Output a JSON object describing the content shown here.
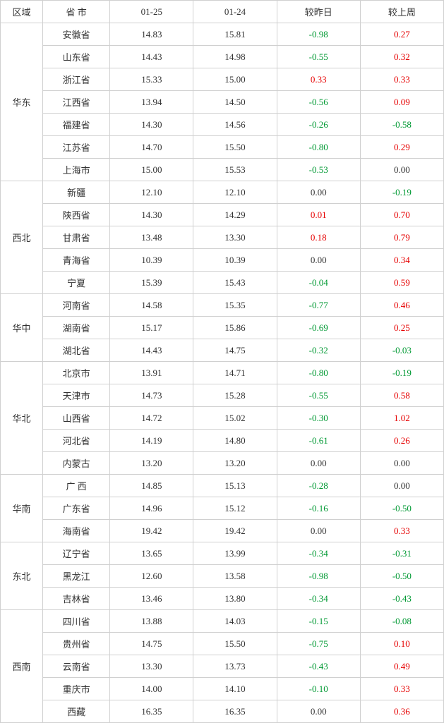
{
  "colors": {
    "neutral": "#333333",
    "positive": "#e60000",
    "negative": "#009933"
  },
  "headers": {
    "region": "区域",
    "province": "省 市",
    "d1": "01-25",
    "d2": "01-24",
    "vs_yest": "较昨日",
    "vs_week": "较上周"
  },
  "groups": [
    {
      "region": "华东",
      "rows": [
        {
          "prov": "安徽省",
          "v1": "14.83",
          "v2": "15.81",
          "dy": -0.98,
          "dw": 0.27
        },
        {
          "prov": "山东省",
          "v1": "14.43",
          "v2": "14.98",
          "dy": -0.55,
          "dw": 0.32
        },
        {
          "prov": "浙江省",
          "v1": "15.33",
          "v2": "15.00",
          "dy": 0.33,
          "dw": 0.33
        },
        {
          "prov": "江西省",
          "v1": "13.94",
          "v2": "14.50",
          "dy": -0.56,
          "dw": 0.09
        },
        {
          "prov": "福建省",
          "v1": "14.30",
          "v2": "14.56",
          "dy": -0.26,
          "dw": -0.58
        },
        {
          "prov": "江苏省",
          "v1": "14.70",
          "v2": "15.50",
          "dy": -0.8,
          "dw": 0.29
        },
        {
          "prov": "上海市",
          "v1": "15.00",
          "v2": "15.53",
          "dy": -0.53,
          "dw": 0.0
        }
      ]
    },
    {
      "region": "西北",
      "rows": [
        {
          "prov": "新疆",
          "v1": "12.10",
          "v2": "12.10",
          "dy": 0.0,
          "dw": -0.19
        },
        {
          "prov": "陕西省",
          "v1": "14.30",
          "v2": "14.29",
          "dy": 0.01,
          "dw": 0.7
        },
        {
          "prov": "甘肃省",
          "v1": "13.48",
          "v2": "13.30",
          "dy": 0.18,
          "dw": 0.79
        },
        {
          "prov": "青海省",
          "v1": "10.39",
          "v2": "10.39",
          "dy": 0.0,
          "dw": 0.34
        },
        {
          "prov": "宁夏",
          "v1": "15.39",
          "v2": "15.43",
          "dy": -0.04,
          "dw": 0.59
        }
      ]
    },
    {
      "region": "华中",
      "rows": [
        {
          "prov": "河南省",
          "v1": "14.58",
          "v2": "15.35",
          "dy": -0.77,
          "dw": 0.46
        },
        {
          "prov": "湖南省",
          "v1": "15.17",
          "v2": "15.86",
          "dy": -0.69,
          "dw": 0.25
        },
        {
          "prov": "湖北省",
          "v1": "14.43",
          "v2": "14.75",
          "dy": -0.32,
          "dw": -0.03
        }
      ]
    },
    {
      "region": "华北",
      "rows": [
        {
          "prov": "北京市",
          "v1": "13.91",
          "v2": "14.71",
          "dy": -0.8,
          "dw": -0.19
        },
        {
          "prov": "天津市",
          "v1": "14.73",
          "v2": "15.28",
          "dy": -0.55,
          "dw": 0.58
        },
        {
          "prov": "山西省",
          "v1": "14.72",
          "v2": "15.02",
          "dy": -0.3,
          "dw": 1.02
        },
        {
          "prov": "河北省",
          "v1": "14.19",
          "v2": "14.80",
          "dy": -0.61,
          "dw": 0.26
        },
        {
          "prov": "内蒙古",
          "v1": "13.20",
          "v2": "13.20",
          "dy": 0.0,
          "dw": 0.0
        }
      ]
    },
    {
      "region": "华南",
      "rows": [
        {
          "prov": "广 西",
          "v1": "14.85",
          "v2": "15.13",
          "dy": -0.28,
          "dw": 0.0
        },
        {
          "prov": "广东省",
          "v1": "14.96",
          "v2": "15.12",
          "dy": -0.16,
          "dw": -0.5
        },
        {
          "prov": "海南省",
          "v1": "19.42",
          "v2": "19.42",
          "dy": 0.0,
          "dw": 0.33
        }
      ]
    },
    {
      "region": "东北",
      "rows": [
        {
          "prov": "辽宁省",
          "v1": "13.65",
          "v2": "13.99",
          "dy": -0.34,
          "dw": -0.31
        },
        {
          "prov": "黑龙江",
          "v1": "12.60",
          "v2": "13.58",
          "dy": -0.98,
          "dw": -0.5
        },
        {
          "prov": "吉林省",
          "v1": "13.46",
          "v2": "13.80",
          "dy": -0.34,
          "dw": -0.43
        }
      ]
    },
    {
      "region": "西南",
      "rows": [
        {
          "prov": "四川省",
          "v1": "13.88",
          "v2": "14.03",
          "dy": -0.15,
          "dw": -0.08
        },
        {
          "prov": "贵州省",
          "v1": "14.75",
          "v2": "15.50",
          "dy": -0.75,
          "dw": 0.1
        },
        {
          "prov": "云南省",
          "v1": "13.30",
          "v2": "13.73",
          "dy": -0.43,
          "dw": 0.49
        },
        {
          "prov": "重庆市",
          "v1": "14.00",
          "v2": "14.10",
          "dy": -0.1,
          "dw": 0.33
        },
        {
          "prov": "西藏",
          "v1": "16.35",
          "v2": "16.35",
          "dy": 0.0,
          "dw": 0.36
        }
      ]
    }
  ]
}
